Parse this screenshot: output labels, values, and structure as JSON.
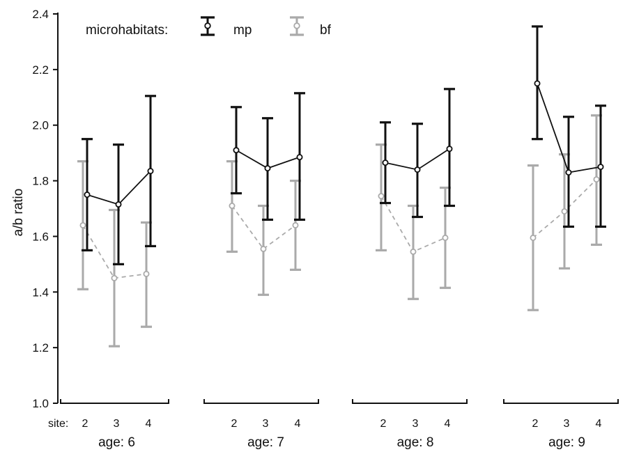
{
  "chart_data": {
    "type": "line",
    "ylabel": "a/b ratio",
    "ylim": [
      1.0,
      2.4
    ],
    "yticks": [
      1.0,
      1.2,
      1.4,
      1.6,
      1.8,
      2.0,
      2.2,
      2.4
    ],
    "x_prefix": "site:",
    "legend": {
      "title": "microhabitats:",
      "placement": "top-left"
    },
    "colors": {
      "mp": "#111111",
      "bf": "#aaaaaa"
    },
    "groups": [
      {
        "label": "age: 6",
        "sites": [
          "2",
          "3",
          "4"
        ],
        "mp": {
          "mean": [
            1.75,
            1.715,
            1.835
          ],
          "lower": [
            1.55,
            1.5,
            1.565
          ],
          "upper": [
            1.95,
            1.93,
            2.105
          ]
        },
        "bf": {
          "mean": [
            1.64,
            1.45,
            1.465
          ],
          "lower": [
            1.41,
            1.205,
            1.275
          ],
          "upper": [
            1.87,
            1.695,
            1.65
          ]
        }
      },
      {
        "label": "age: 7",
        "sites": [
          "2",
          "3",
          "4"
        ],
        "mp": {
          "mean": [
            1.91,
            1.845,
            1.885
          ],
          "lower": [
            1.755,
            1.66,
            1.66
          ],
          "upper": [
            2.065,
            2.025,
            2.115
          ]
        },
        "bf": {
          "mean": [
            1.71,
            1.555,
            1.64
          ],
          "lower": [
            1.545,
            1.39,
            1.48
          ],
          "upper": [
            1.87,
            1.71,
            1.8
          ]
        }
      },
      {
        "label": "age: 8",
        "sites": [
          "2",
          "3",
          "4"
        ],
        "mp": {
          "mean": [
            1.865,
            1.84,
            1.915
          ],
          "lower": [
            1.72,
            1.67,
            1.71
          ],
          "upper": [
            2.01,
            2.005,
            2.13
          ]
        },
        "bf": {
          "mean": [
            1.745,
            1.545,
            1.595
          ],
          "lower": [
            1.55,
            1.375,
            1.415
          ],
          "upper": [
            1.93,
            1.71,
            1.775
          ]
        }
      },
      {
        "label": "age: 9",
        "sites": [
          "2",
          "3",
          "4"
        ],
        "mp": {
          "mean": [
            2.15,
            1.83,
            1.85
          ],
          "lower": [
            1.95,
            1.635,
            1.635
          ],
          "upper": [
            2.355,
            2.03,
            2.07
          ]
        },
        "bf": {
          "mean": [
            1.595,
            1.69,
            1.805
          ],
          "lower": [
            1.335,
            1.485,
            1.57
          ],
          "upper": [
            1.855,
            1.895,
            2.035
          ]
        }
      }
    ],
    "series": [
      {
        "name": "mp",
        "line_style": "solid"
      },
      {
        "name": "bf",
        "line_style": "dashed"
      }
    ]
  }
}
